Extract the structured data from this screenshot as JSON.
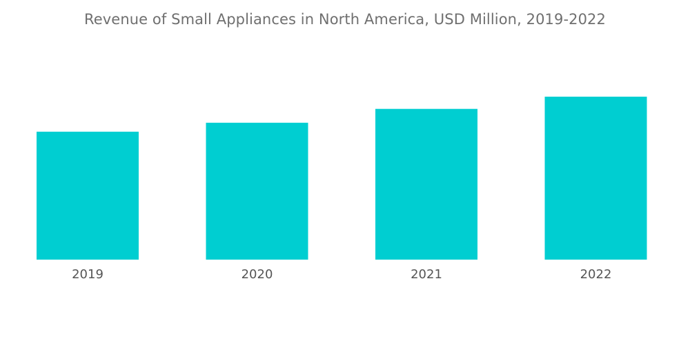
{
  "chart_data": {
    "type": "bar",
    "title": "Revenue of Small Appliances in North America, USD Million, 2019-2022",
    "categories": [
      "2019",
      "2020",
      "2021",
      "2022"
    ],
    "values": [
      78.5,
      84.0,
      92.5,
      100.0
    ],
    "xlabel": "",
    "ylabel": "",
    "ylim": [
      0,
      110
    ],
    "grid": false,
    "legend": "none",
    "bar_color": "#00CED1"
  }
}
